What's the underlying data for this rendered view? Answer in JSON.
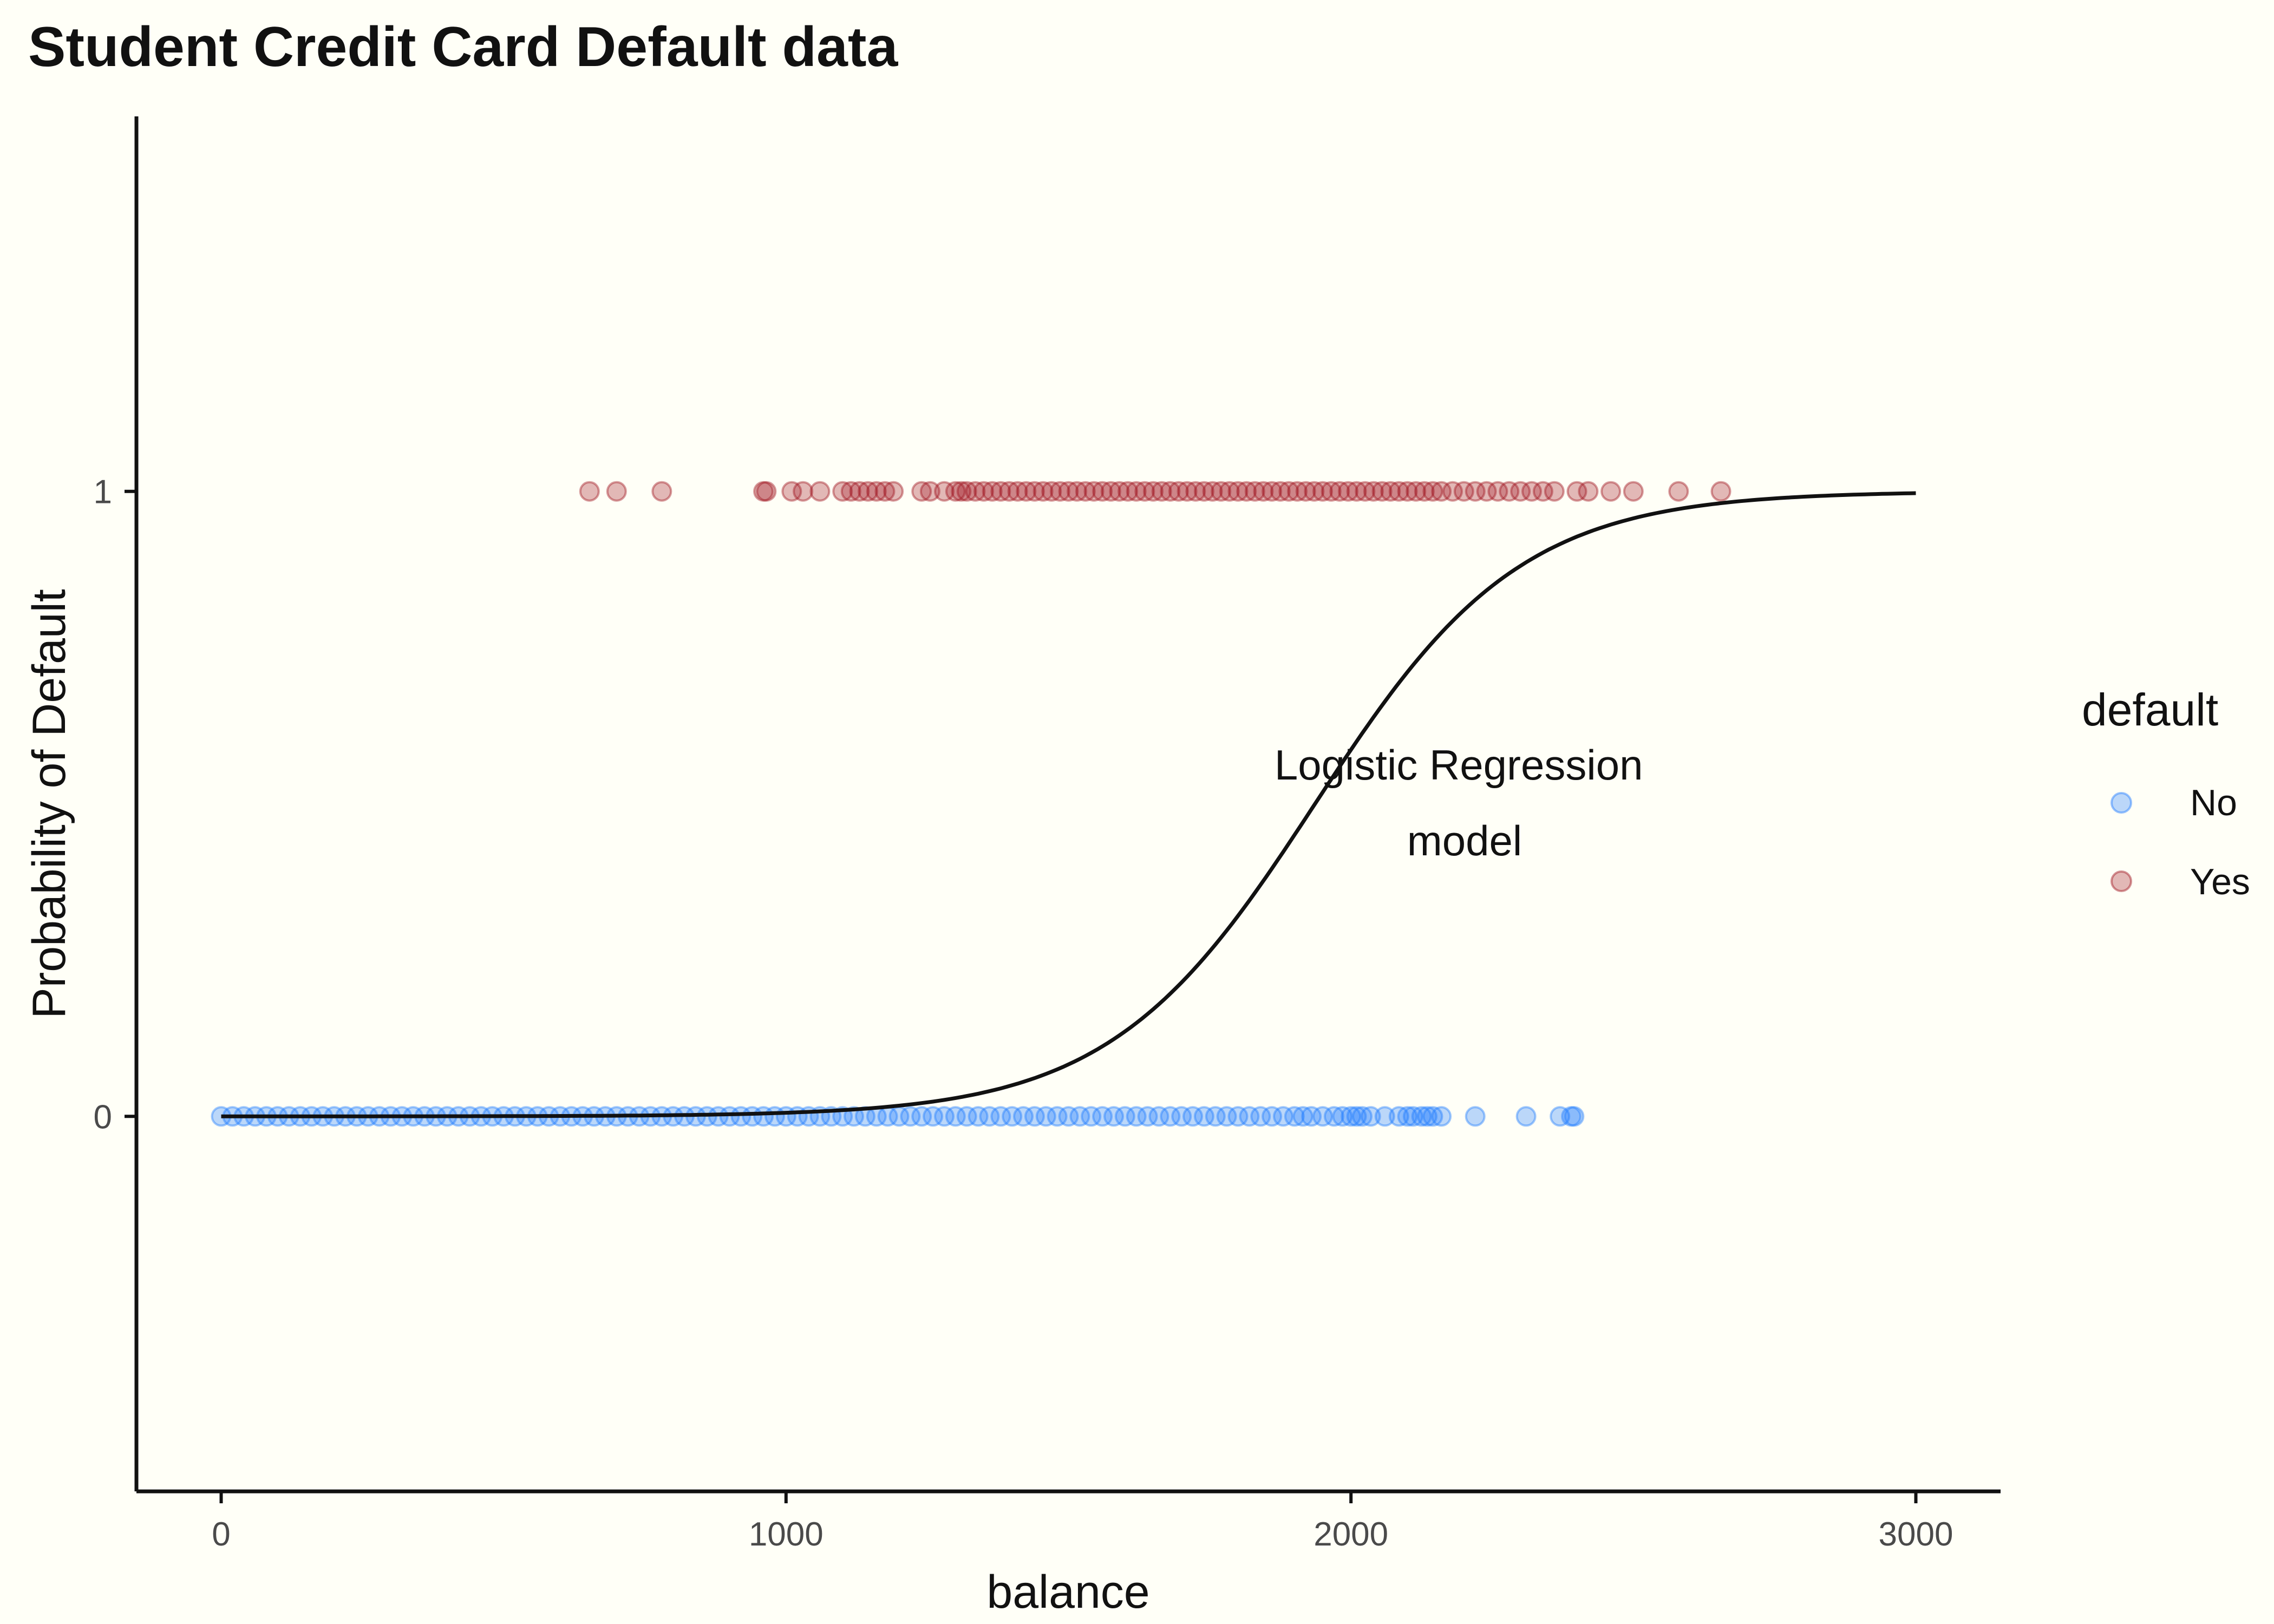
{
  "chart_data": {
    "type": "scatter",
    "title": "Student Credit Card Default data",
    "xlabel": "balance",
    "ylabel": "Probability of Default",
    "xlim": [
      -150,
      3150
    ],
    "ylim": [
      -0.6,
      1.6
    ],
    "x_ticks": [
      0,
      1000,
      2000,
      3000
    ],
    "x_tick_labels": [
      "0",
      "1000",
      "2000",
      "3000"
    ],
    "y_ticks": [
      0,
      1
    ],
    "y_tick_labels": [
      "0",
      "1"
    ],
    "grid": false,
    "legend": {
      "title": "default",
      "placement": "right",
      "entries": [
        "No",
        "Yes"
      ]
    },
    "annotation": {
      "lines": [
        "Logistic Regression",
        "model"
      ],
      "x": 2200,
      "y": 0.5
    },
    "series": [
      {
        "name": "No",
        "color": "#1E7BFF",
        "opacity": 0.3,
        "y": 0,
        "x": [
          0,
          20,
          40,
          60,
          80,
          100,
          120,
          140,
          160,
          180,
          200,
          220,
          240,
          260,
          280,
          300,
          320,
          340,
          360,
          380,
          400,
          420,
          440,
          460,
          480,
          500,
          520,
          540,
          560,
          580,
          600,
          620,
          640,
          660,
          680,
          700,
          720,
          740,
          760,
          780,
          800,
          820,
          840,
          860,
          880,
          900,
          920,
          940,
          960,
          980,
          1000,
          1020,
          1040,
          1060,
          1080,
          1100,
          1120,
          1140,
          1160,
          1180,
          1200,
          1220,
          1240,
          1260,
          1280,
          1300,
          1320,
          1340,
          1360,
          1380,
          1400,
          1420,
          1440,
          1460,
          1480,
          1500,
          1520,
          1540,
          1560,
          1580,
          1600,
          1620,
          1640,
          1660,
          1680,
          1700,
          1720,
          1740,
          1760,
          1780,
          1800,
          1820,
          1840,
          1860,
          1880,
          1900,
          1915,
          1930,
          1950,
          1970,
          1985,
          2000,
          2010,
          2020,
          2035,
          2060,
          2085,
          2100,
          2110,
          2125,
          2135,
          2145,
          2160,
          2220,
          2310,
          2370,
          2390,
          2395
        ]
      },
      {
        "name": "Yes",
        "color": "#A01420",
        "opacity": 0.3,
        "y": 1,
        "x": [
          652,
          700,
          780,
          960,
          965,
          1010,
          1030,
          1060,
          1100,
          1115,
          1130,
          1145,
          1160,
          1175,
          1190,
          1240,
          1255,
          1280,
          1300,
          1310,
          1320,
          1335,
          1350,
          1365,
          1380,
          1395,
          1410,
          1425,
          1440,
          1455,
          1470,
          1485,
          1500,
          1515,
          1530,
          1545,
          1560,
          1575,
          1590,
          1605,
          1620,
          1635,
          1650,
          1665,
          1680,
          1695,
          1710,
          1725,
          1740,
          1755,
          1770,
          1785,
          1800,
          1815,
          1830,
          1845,
          1860,
          1875,
          1890,
          1905,
          1920,
          1935,
          1950,
          1965,
          1980,
          1995,
          2010,
          2025,
          2040,
          2055,
          2070,
          2085,
          2100,
          2115,
          2130,
          2145,
          2160,
          2180,
          2200,
          2220,
          2240,
          2260,
          2280,
          2300,
          2320,
          2340,
          2360,
          2400,
          2420,
          2460,
          2500,
          2580,
          2655
        ]
      },
      {
        "name": "Logistic Regression model",
        "type": "line",
        "color": "#111111",
        "x": [
          0,
          3000
        ],
        "intercept": -10.65,
        "slope": 0.0055
      }
    ]
  }
}
